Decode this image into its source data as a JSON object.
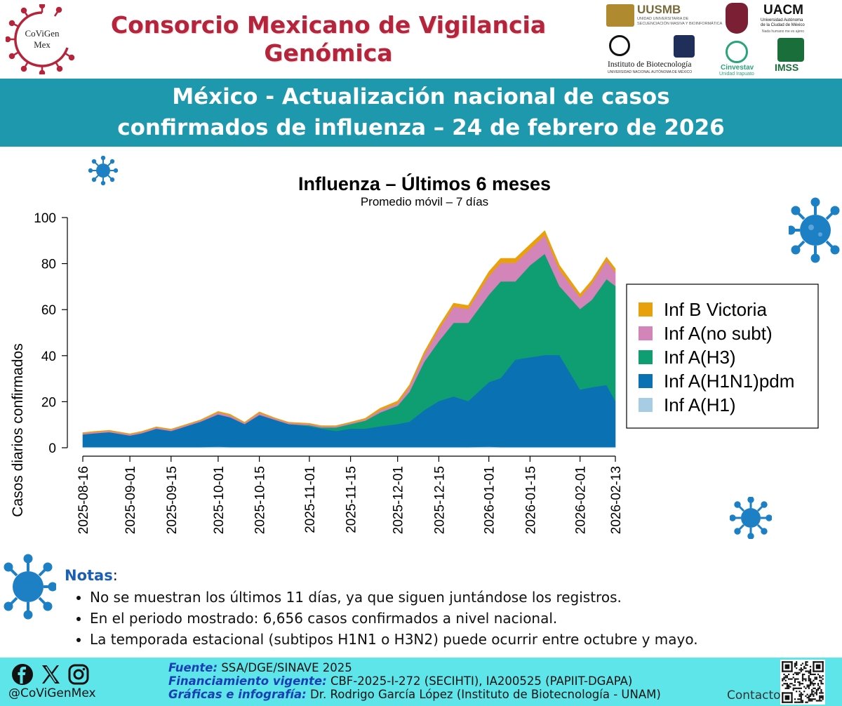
{
  "header": {
    "logo_text_1": "CoViGen",
    "logo_text_2": "Mex",
    "title_line_1": "Consorcio Mexicano de Vigilancia",
    "title_line_2": "Genómica",
    "partners": {
      "uusmb_name": "UUSMB",
      "uusmb_sub_1": "UNIDAD UNIVERSITARIA DE",
      "uusmb_sub_2": "SECUENCIACIÓN MASIVA Y BIOINFORMÁTICA",
      "uacm_name": "UACM",
      "uacm_sub_1": "Universidad Autónoma",
      "uacm_sub_2": "de la Ciudad de México",
      "uacm_sub_3": "Nada humano me es ajeno",
      "ibt_name": "Instituto de Biotecnología",
      "ibt_sub": "UNIVERSIDAD NACIONAL AUTÓNOMA DE MÉXICO",
      "cinvestav_name": "Cinvestav",
      "cinvestav_sub": "Unidad Irapuato",
      "imss_name": "IMSS"
    }
  },
  "banner": {
    "line_1": "México - Actualización nacional de casos",
    "line_2": "confirmados de influenza – 24 de febrero de 2026"
  },
  "chart_data": {
    "type": "area",
    "stacked": true,
    "title": "Influenza – Últimos 6 meses",
    "subtitle": "Promedio móvil – 7 días",
    "ylabel": "Casos diarios confirmados",
    "xlabel": "",
    "ylim": [
      0,
      100
    ],
    "yticks": [
      0,
      20,
      40,
      60,
      80,
      100
    ],
    "xlim": [
      "2025-08-16",
      "2026-02-13"
    ],
    "xticks": [
      "2025-08-16",
      "2025-09-01",
      "2025-09-15",
      "2025-10-01",
      "2025-10-15",
      "2025-11-01",
      "2025-11-15",
      "2025-12-01",
      "2025-12-15",
      "2026-01-01",
      "2026-01-15",
      "2026-02-01",
      "2026-02-13"
    ],
    "grid": false,
    "legend_position": "right",
    "x": [
      "2025-08-16",
      "2025-08-20",
      "2025-08-25",
      "2025-09-01",
      "2025-09-05",
      "2025-09-10",
      "2025-09-15",
      "2025-09-20",
      "2025-09-25",
      "2025-10-01",
      "2025-10-05",
      "2025-10-10",
      "2025-10-15",
      "2025-10-20",
      "2025-10-25",
      "2025-11-01",
      "2025-11-05",
      "2025-11-10",
      "2025-11-15",
      "2025-11-20",
      "2025-11-25",
      "2025-12-01",
      "2025-12-05",
      "2025-12-10",
      "2025-12-15",
      "2025-12-20",
      "2025-12-25",
      "2026-01-01",
      "2026-01-05",
      "2026-01-10",
      "2026-01-15",
      "2026-01-20",
      "2026-01-25",
      "2026-02-01",
      "2026-02-05",
      "2026-02-10",
      "2026-02-13"
    ],
    "series": [
      {
        "name": "Inf A(H1)",
        "color": "#a6cde4",
        "values": [
          0.3,
          0.3,
          0.3,
          0.3,
          0.3,
          0.3,
          0.3,
          0.3,
          0.3,
          0.5,
          0.3,
          0.3,
          0.3,
          0.3,
          0.3,
          0.3,
          0.3,
          0.3,
          0.3,
          0.3,
          0.3,
          0.3,
          0.3,
          0.3,
          0.3,
          0.3,
          0.3,
          0.5,
          0.3,
          0.3,
          0.3,
          0.3,
          0.3,
          0.3,
          0.3,
          0.3,
          0.3
        ]
      },
      {
        "name": "Inf A(H1N1)pdm",
        "color": "#0a72b3",
        "values": [
          5.5,
          6,
          6.5,
          5,
          6,
          8,
          7,
          9,
          11,
          14,
          13,
          10,
          14,
          12,
          10,
          9,
          8,
          7,
          8,
          8,
          9,
          10,
          11,
          16,
          20,
          22,
          20,
          28,
          30,
          38,
          39,
          40,
          40,
          25,
          26,
          27,
          20
        ]
      },
      {
        "name": "Inf A(H3)",
        "color": "#0f9e72",
        "values": [
          0,
          0,
          0,
          0,
          0,
          0,
          0,
          0,
          0,
          0,
          0,
          0,
          0,
          0,
          0,
          0.5,
          0.5,
          1.5,
          2,
          3.5,
          6,
          8,
          13,
          21,
          26,
          32,
          34,
          38,
          42,
          34,
          40,
          44,
          30,
          35,
          38,
          46,
          50
        ]
      },
      {
        "name": "Inf A(no subt)",
        "color": "#d384b8",
        "values": [
          0.5,
          0.5,
          0.5,
          0.5,
          0.5,
          0.5,
          0.5,
          0.5,
          0.5,
          0.8,
          0.8,
          0.5,
          0.8,
          0.5,
          0.5,
          0.5,
          0.5,
          0.5,
          0.5,
          0.5,
          1,
          1,
          2,
          3,
          5,
          7,
          6,
          8,
          8,
          8,
          7,
          8,
          7,
          5,
          7,
          8,
          6
        ]
      },
      {
        "name": "Inf B Victoria",
        "color": "#e9a10b",
        "values": [
          0.3,
          0.3,
          0.3,
          0.3,
          0.3,
          0.3,
          0.3,
          0.3,
          0.3,
          0.5,
          0.5,
          0.3,
          0.5,
          0.3,
          0.3,
          0.3,
          0.3,
          0.3,
          0.3,
          0.5,
          0.8,
          1,
          1,
          1.2,
          1.5,
          1.5,
          1.5,
          2,
          2,
          2,
          2,
          2,
          2,
          1.5,
          1.5,
          1.5,
          1.5
        ]
      }
    ],
    "legend_order": [
      "Inf B Victoria",
      "Inf A(no subt)",
      "Inf A(H3)",
      "Inf A(H1N1)pdm",
      "Inf A(H1)"
    ]
  },
  "notes": {
    "title": "Notas",
    "items": [
      "No se muestran los últimos 11 días, ya que siguen juntándose los registros.",
      "En el periodo mostrado: 6,656 casos confirmados a nivel nacional.",
      "La temporada estacional (subtipos H1N1 o H3N2) puede ocurrir entre octubre y mayo."
    ]
  },
  "footer": {
    "handle": "@CoViGenMex",
    "fuente_label": "Fuente:",
    "fuente_value": "SSA/DGE/SINAVE 2025",
    "financiamiento_label": "Financiamiento vigente:",
    "financiamiento_value": "CBF-2025-I-272 (SECIHTI), IA200525 (PAPIIT-DGAPA)",
    "graficas_label": "Gráficas e infografía:",
    "graficas_value": "Dr. Rodrigo García López (Instituto de Biotecnología - UNAM)",
    "contact_label": "Contacto:",
    "icons": [
      "facebook-icon",
      "x-icon",
      "instagram-icon",
      "qr-code"
    ]
  },
  "colors": {
    "title_red": "#b5243a",
    "banner_teal": "#1e98ad",
    "footer_cyan": "#5ee5e9",
    "virus_blue": "#1d7fc4",
    "notes_blue": "#1a5fb4"
  }
}
